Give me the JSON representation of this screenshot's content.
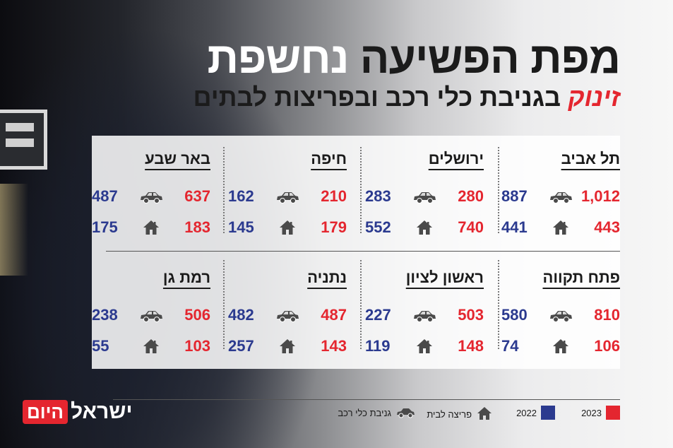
{
  "title": {
    "part1": "מפת הפשיעה",
    "part2": "נחשפת"
  },
  "subtitle": {
    "highlight": "זינוק",
    "rest": "בגניבת כלי רכב ובפריצות לבתים"
  },
  "colors": {
    "y2023": "#e4262f",
    "y2022": "#2b3a8f",
    "text": "#1b1b1b"
  },
  "icons": {
    "car": "car-icon",
    "house": "house-icon"
  },
  "cities": [
    {
      "name": "תל אביב",
      "car2023": "1,012",
      "car2022": "887",
      "house2023": "443",
      "house2022": "441"
    },
    {
      "name": "ירושלים",
      "car2023": "280",
      "car2022": "283",
      "house2023": "740",
      "house2022": "552"
    },
    {
      "name": "חיפה",
      "car2023": "210",
      "car2022": "162",
      "house2023": "179",
      "house2022": "145"
    },
    {
      "name": "באר שבע",
      "car2023": "637",
      "car2022": "487",
      "house2023": "183",
      "house2022": "175"
    },
    {
      "name": "פתח תקווה",
      "car2023": "810",
      "car2022": "580",
      "house2023": "106",
      "house2022": "74"
    },
    {
      "name": "ראשון לציון",
      "car2023": "503",
      "car2022": "227",
      "house2023": "148",
      "house2022": "119"
    },
    {
      "name": "נתניה",
      "car2023": "487",
      "car2022": "482",
      "house2023": "143",
      "house2022": "257"
    },
    {
      "name": "רמת גן",
      "car2023": "506",
      "car2022": "238",
      "house2023": "103",
      "house2022": "55"
    }
  ],
  "legend": {
    "y2023": "2023",
    "y2022": "2022",
    "house": "פריצה לבית",
    "car": "גניבת כלי רכב"
  },
  "logo": {
    "main": "ישראל",
    "badge": "היום"
  }
}
